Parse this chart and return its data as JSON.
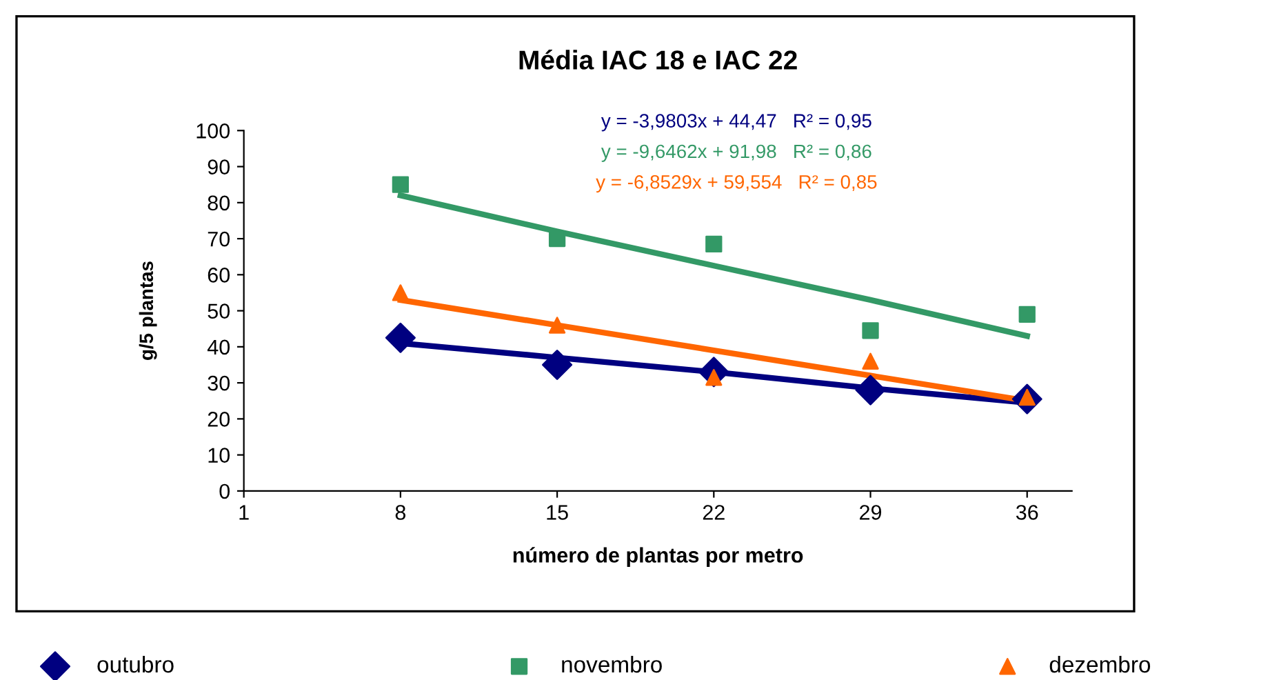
{
  "chart_data": {
    "type": "scatter",
    "title": "Média IAC 18 e IAC 22",
    "xlabel": "número de plantas por metro",
    "ylabel": "g/5 plantas",
    "x": [
      8,
      15,
      22,
      29,
      36
    ],
    "series": [
      {
        "name": "outubro",
        "color": "#000080",
        "marker": "diamond",
        "values": [
          42.5,
          35,
          33,
          28,
          25.5
        ]
      },
      {
        "name": "novembro",
        "color": "#339966",
        "marker": "square",
        "values": [
          85,
          70,
          68.5,
          44.5,
          49
        ]
      },
      {
        "name": "dezembro",
        "color": "#ff6600",
        "marker": "triangle",
        "values": [
          55,
          46,
          31.5,
          36,
          26
        ]
      },
      {
        "type": "line",
        "color": "#000080",
        "values": [
          41,
          37,
          33,
          28.5,
          24.5
        ],
        "marker": "none"
      },
      {
        "type": "line",
        "color": "#339966",
        "values": [
          82,
          72,
          62.5,
          53,
          43
        ],
        "marker": "none"
      },
      {
        "type": "line",
        "color": "#ff6600",
        "values": [
          53,
          46,
          39,
          32,
          25
        ],
        "marker": "none"
      }
    ],
    "annotations": [
      "y = -3,9803x + 44,47   R² = 0,95",
      "y = -9,6462x + 91,98   R² = 0,86",
      "y = -6,8529x + 59,554   R² = 0,85"
    ],
    "xlim": [
      1,
      38
    ],
    "xticks": [
      1,
      8,
      15,
      22,
      29,
      36
    ],
    "ylim": [
      0,
      100
    ],
    "yticks": [
      0,
      10,
      20,
      30,
      40,
      50,
      60,
      70,
      80,
      90,
      100
    ],
    "grid": false,
    "legend": "bottom"
  }
}
